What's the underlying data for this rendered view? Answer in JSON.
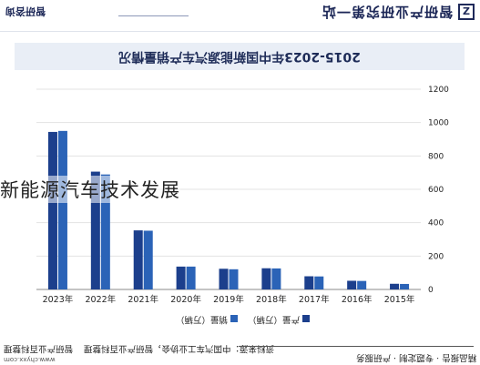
{
  "header": {
    "slogan": "智研产业研究第一站",
    "brand": "智研咨询",
    "logo_letter": "Z"
  },
  "chart_data": {
    "type": "bar",
    "title": "2015-2023年中国新能源汽车产销量情况",
    "categories": [
      "2023年",
      "2022年",
      "2021年",
      "2020年",
      "2019年",
      "2018年",
      "2017年",
      "2016年",
      "2015年"
    ],
    "series": [
      {
        "name": "产量（万辆）",
        "color": "#1c3f8c",
        "values": [
          944,
          706,
          354,
          137,
          124,
          127,
          79,
          52,
          34
        ]
      },
      {
        "name": "销量（万辆）",
        "color": "#2b63b7",
        "values": [
          950,
          689,
          352,
          137,
          121,
          126,
          78,
          51,
          33
        ]
      }
    ],
    "y_ticks": [
      "0",
      "200",
      "400",
      "600",
      "800",
      "1000",
      "1200"
    ],
    "ylim": [
      0,
      1200
    ],
    "grid": true,
    "axis_side": "right",
    "legend": "bottom"
  },
  "overlay_text": "新能源汽车技术发展",
  "footer": {
    "source": "资料来源：中国汽车工业协会，智研产业百科整理",
    "left_brand": "智研产业百科整理",
    "url": "www.chyxx.com",
    "right_text": "精品报告 · 专题定制 · 产研服务"
  }
}
